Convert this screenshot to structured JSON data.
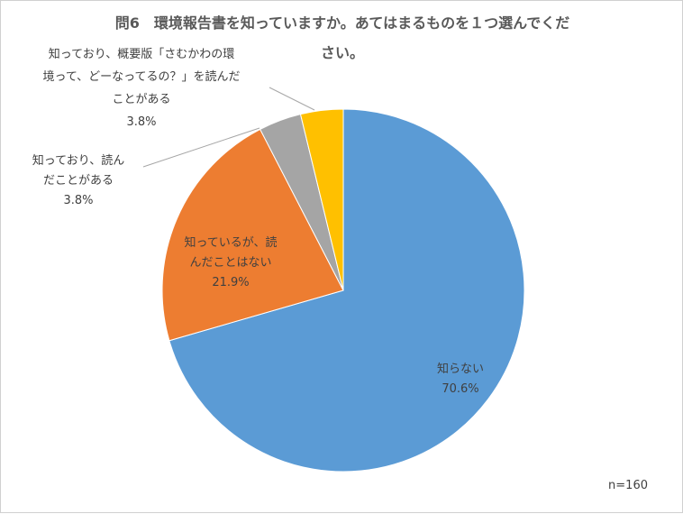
{
  "chart_data": {
    "type": "pie",
    "title": "問6　環境報告書を知っていますか。あてはまるものを１つ選んでください。",
    "title_lines": [
      "問6　環境報告書を知っていますか。あてはまるものを１つ選んでくだ",
      "さい。"
    ],
    "note": "n=160",
    "slices": [
      {
        "label": "知らない",
        "label_lines": [
          "知らない"
        ],
        "value": 70.6,
        "value_label": "70.6%",
        "color": "#5b9bd5"
      },
      {
        "label": "知っているが、読んだことはない",
        "label_lines": [
          "知っているが、読",
          "んだことはない"
        ],
        "value": 21.9,
        "value_label": "21.9%",
        "color": "#ed7d31"
      },
      {
        "label": "知っており、読んだことがある",
        "label_lines": [
          "知っており、読ん",
          "だことがある"
        ],
        "value": 3.8,
        "value_label": "3.8%",
        "color": "#a5a5a5"
      },
      {
        "label": "知っており、概要版「さむかわの環境って、どーなってるの？」を読んだことがある",
        "label_lines": [
          "知っており、概要版「さむかわの環",
          "境って、どーなってるの？」を読んだ",
          "ことがある"
        ],
        "value": 3.8,
        "value_label": "3.8%",
        "color": "#ffc000"
      }
    ],
    "legend": "none"
  }
}
